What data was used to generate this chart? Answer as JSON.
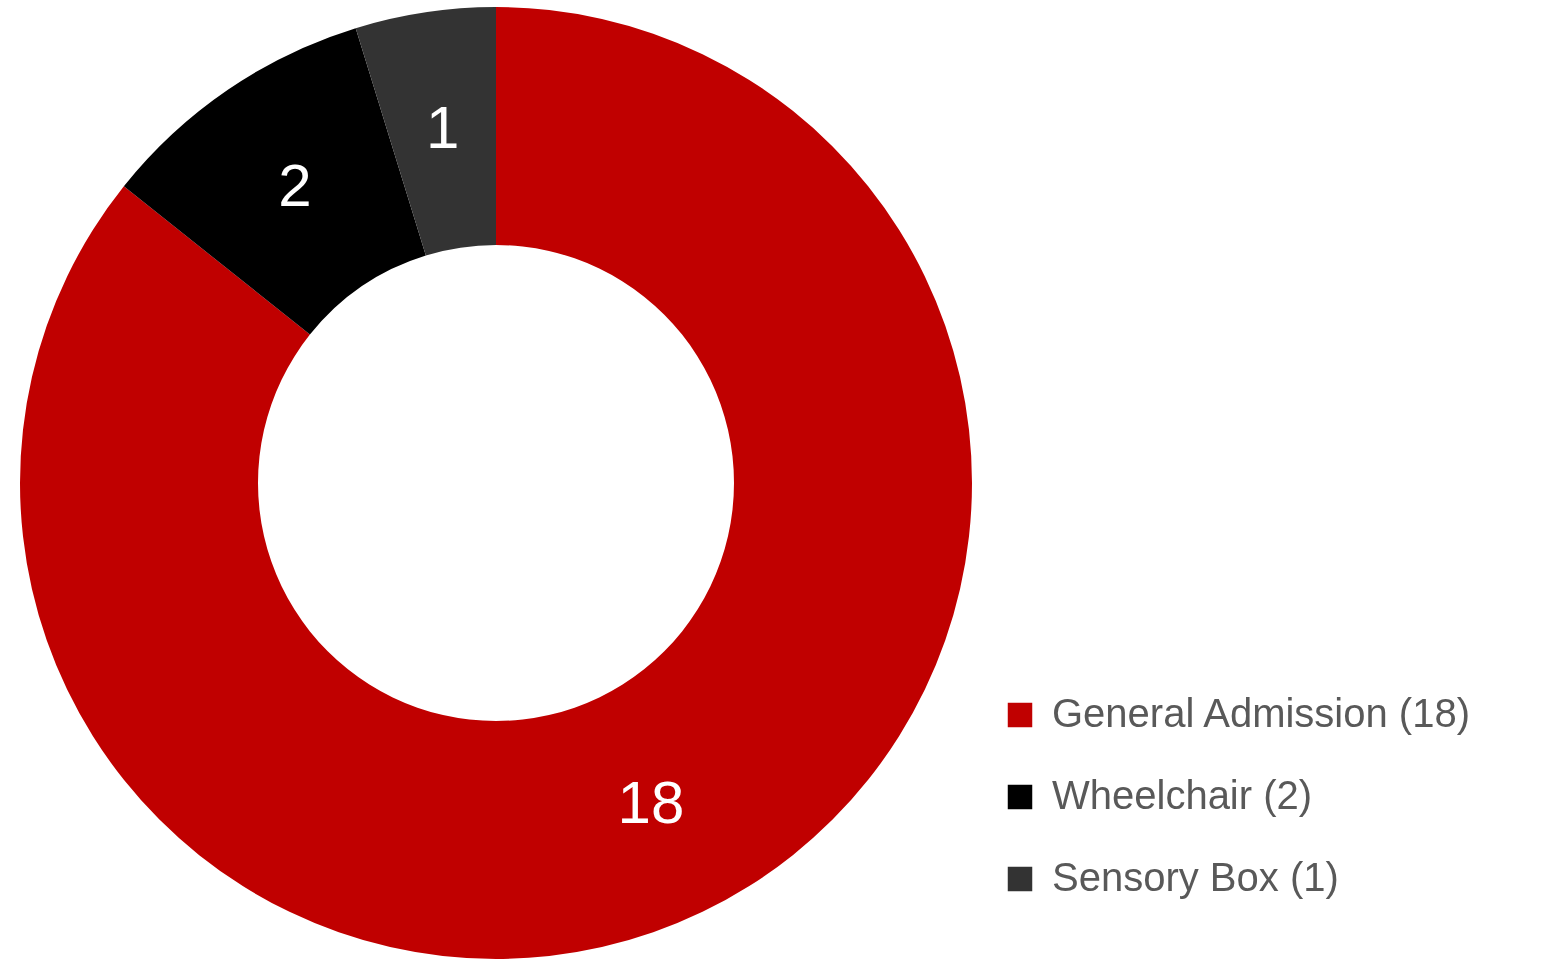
{
  "chart_data": {
    "type": "donut",
    "categories": [
      "General Admission (18)",
      "Wheelchair (2)",
      "Sensory Box (1)"
    ],
    "values": [
      18,
      2,
      1
    ],
    "colors": [
      "#c00000",
      "#000000",
      "#333333"
    ],
    "data_labels": true,
    "legend": "bottom right"
  }
}
